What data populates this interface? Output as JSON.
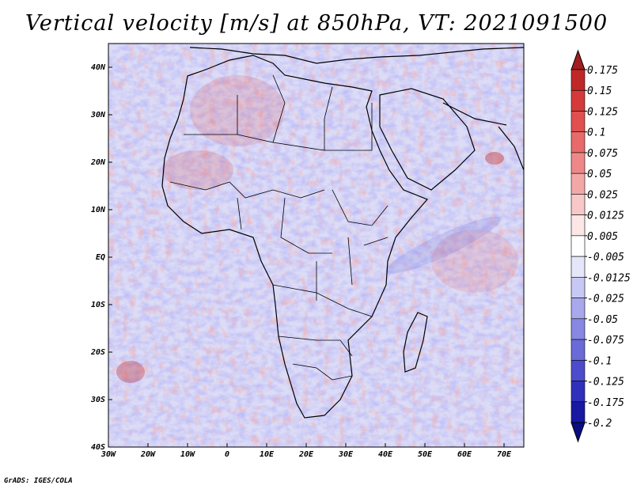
{
  "title": "Vertical velocity [m/s] at 850hPa, VT: 2021091500",
  "credit": "GrADS: IGES/COLA",
  "map": {
    "lat_range": [
      -40,
      45
    ],
    "lon_range": [
      -30,
      75
    ],
    "x_ticks": [
      "30W",
      "20W",
      "10W",
      "0",
      "10E",
      "20E",
      "30E",
      "40E",
      "50E",
      "60E",
      "70E"
    ],
    "x_tick_values": [
      -30,
      -20,
      -10,
      0,
      10,
      20,
      30,
      40,
      50,
      60,
      70
    ],
    "y_ticks": [
      "40N",
      "30N",
      "20N",
      "10N",
      "EQ",
      "10S",
      "20S",
      "30S",
      "40S"
    ],
    "y_tick_values": [
      40,
      30,
      20,
      10,
      0,
      -10,
      -20,
      -30,
      -40
    ],
    "land_outline_color": "#000000"
  },
  "colorbar": {
    "labels": [
      "0.175",
      "0.15",
      "0.125",
      "0.1",
      "0.075",
      "0.05",
      "0.025",
      "0.0125",
      "0.005",
      "-0.005",
      "-0.0125",
      "-0.025",
      "-0.05",
      "-0.075",
      "-0.1",
      "-0.125",
      "-0.175",
      "-0.2"
    ],
    "colors": [
      "#a01e1e",
      "#c02828",
      "#d43a3a",
      "#e05050",
      "#e86a6a",
      "#ee8888",
      "#f3a8a8",
      "#f8c8c8",
      "#fce6e6",
      "#ffffff",
      "#e6e6fb",
      "#c8c8f4",
      "#a8a8ec",
      "#8888e2",
      "#6a6ad8",
      "#4c4ccc",
      "#3030bc",
      "#1818a4",
      "#0c0c80"
    ]
  }
}
